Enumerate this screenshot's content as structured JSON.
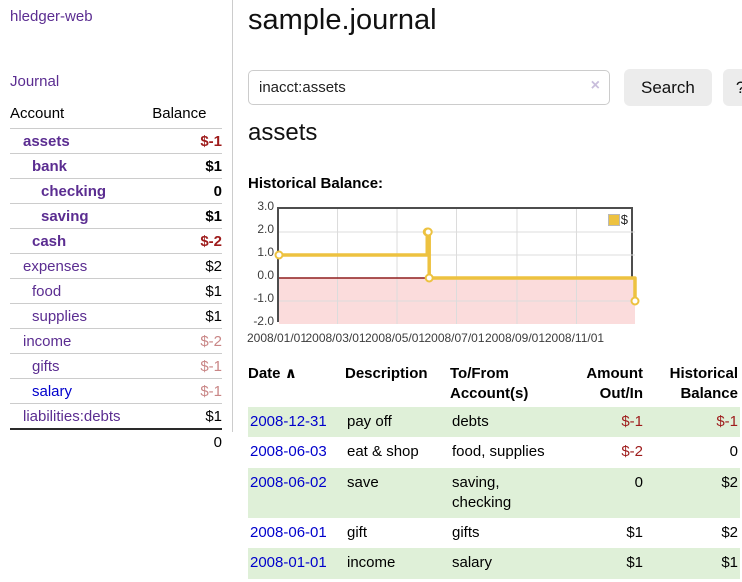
{
  "app": {
    "title": "hledger-web"
  },
  "sidebar": {
    "journal_link": "Journal",
    "accounts": {
      "headers": {
        "account": "Account",
        "balance": "Balance"
      },
      "rows": [
        {
          "label": "assets",
          "indent": 1,
          "bold": true,
          "color": "purple",
          "balance": "$-1",
          "balance_style": "neg bold"
        },
        {
          "label": "bank",
          "indent": 2,
          "bold": true,
          "color": "purple",
          "balance": "$1",
          "balance_style": "bold"
        },
        {
          "label": "checking",
          "indent": 3,
          "bold": true,
          "color": "purple",
          "balance": "0",
          "balance_style": "bold"
        },
        {
          "label": "saving",
          "indent": 3,
          "bold": true,
          "color": "purple",
          "balance": "$1",
          "balance_style": "bold"
        },
        {
          "label": "cash",
          "indent": 2,
          "bold": true,
          "color": "purple",
          "balance": "$-2",
          "balance_style": "neg bold"
        },
        {
          "label": "expenses",
          "indent": 1,
          "bold": false,
          "color": "purple",
          "balance": "$2",
          "balance_style": ""
        },
        {
          "label": "food",
          "indent": 2,
          "bold": false,
          "color": "purple",
          "balance": "$1",
          "balance_style": ""
        },
        {
          "label": "supplies",
          "indent": 2,
          "bold": false,
          "color": "purple",
          "balance": "$1",
          "balance_style": ""
        },
        {
          "label": "income",
          "indent": 1,
          "bold": false,
          "color": "purple",
          "balance": "$-2",
          "balance_style": "faded"
        },
        {
          "label": "gifts",
          "indent": 2,
          "bold": false,
          "color": "purple",
          "balance": "$-1",
          "balance_style": "faded"
        },
        {
          "label": "salary",
          "indent": 2,
          "bold": false,
          "color": "blue",
          "balance": "$-1",
          "balance_style": "faded"
        },
        {
          "label": "liabilities:debts",
          "indent": 1,
          "bold": false,
          "color": "purple",
          "balance": "$1",
          "balance_style": ""
        }
      ],
      "total": "0"
    }
  },
  "main": {
    "title": "sample.journal",
    "search": {
      "value": "inacct:assets",
      "clear_icon": "×",
      "button_label": "Search",
      "help_label": "?"
    },
    "account_heading": "assets"
  },
  "chart_data": {
    "type": "line",
    "step": true,
    "title": "Historical Balance:",
    "legend": {
      "label": "$",
      "position": "top-right"
    },
    "series": [
      {
        "name": "$",
        "color": "#edc240",
        "points": [
          {
            "date": "2008-01-01",
            "value": 1
          },
          {
            "date": "2008-06-01",
            "value": 2
          },
          {
            "date": "2008-06-02",
            "value": 2
          },
          {
            "date": "2008-06-03",
            "value": 0
          },
          {
            "date": "2008-12-31",
            "value": -1
          }
        ]
      }
    ],
    "x_ticks": [
      "2008/01/01",
      "2008/03/01",
      "2008/05/01",
      "2008/07/01",
      "2008/09/01",
      "2008/11/01"
    ],
    "y_ticks": [
      3.0,
      2.0,
      1.0,
      0.0,
      -1.0,
      -2.0
    ],
    "ylim": [
      -2,
      3
    ],
    "grid": true,
    "negative_fill": "#fbdcdc",
    "zero_line_color": "#8f1e1e"
  },
  "register": {
    "headers": {
      "date": "Date",
      "description": "Description",
      "accounts": "To/From Account(s)",
      "amount": "Amount Out/In",
      "balance": "Historical Balance"
    },
    "sort_icon": "∧",
    "rows": [
      {
        "date": "2008-12-31",
        "description": "pay off",
        "accounts": "debts",
        "amount": "$-1",
        "amount_negative": true,
        "balance": "$-1",
        "balance_negative": true
      },
      {
        "date": "2008-06-03",
        "description": "eat & shop",
        "accounts": "food, supplies",
        "amount": "$-2",
        "amount_negative": true,
        "balance": "0",
        "balance_negative": false
      },
      {
        "date": "2008-06-02",
        "description": "save",
        "accounts": "saving, checking",
        "amount": "0",
        "amount_negative": false,
        "balance": "$2",
        "balance_negative": false
      },
      {
        "date": "2008-06-01",
        "description": "gift",
        "accounts": "gifts",
        "amount": "$1",
        "amount_negative": false,
        "balance": "$2",
        "balance_negative": false
      },
      {
        "date": "2008-01-01",
        "description": "income",
        "accounts": "salary",
        "amount": "$1",
        "amount_negative": false,
        "balance": "$1",
        "balance_negative": false
      }
    ]
  },
  "colors": {
    "link_purple": "#5b2d91",
    "link_blue": "#0000cc",
    "negative_red": "#9e1b1b",
    "negative_faded": "#c98686",
    "row_green": "#dff0d8",
    "chart_gold": "#edc240",
    "chart_negative_area": "#fbdcdc",
    "chart_zero_line": "#8f1e1e",
    "button_gray": "#ececec"
  }
}
